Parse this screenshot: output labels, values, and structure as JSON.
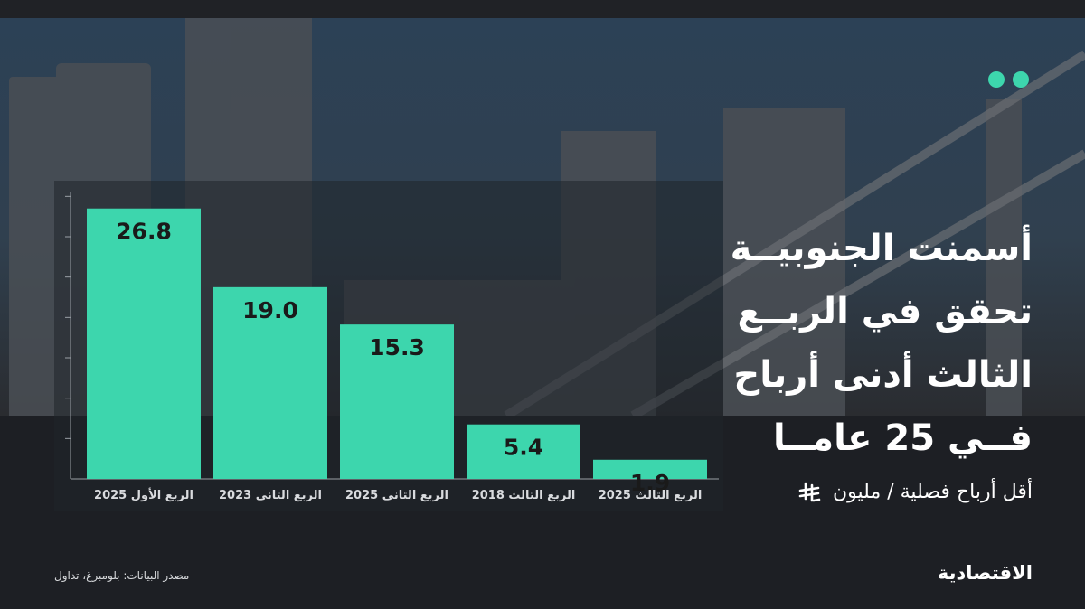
{
  "headline": {
    "lines": [
      "أسمنت الجنوبيــة",
      "تحقق في الربــع",
      "الثالث أدنى أرباح",
      "فــي 25 عامــا"
    ]
  },
  "subtitle": "أقل أرباح فصلية / مليون",
  "source": "مصدر البيانات: بلومبرغ، تداول",
  "brand": "الاقتصادية",
  "colors": {
    "bar": "#3dd6ad",
    "background": "#1d1f24",
    "text": "#ffffff",
    "dots": "#3dd6ad"
  },
  "icons": [
    "riyal-currency-icon",
    "logo-dots-icon"
  ],
  "chart_data": {
    "type": "bar",
    "categories": [
      "الربع الأول 2025",
      "الربع الثاني 2023",
      "الربع الثاني 2025",
      "الربع الثالث 2018",
      "الربع الثالث 2025"
    ],
    "values": [
      26.8,
      19.0,
      15.3,
      5.4,
      1.9
    ],
    "value_labels": [
      "26.8",
      "19.0",
      "15.3",
      "5.4",
      "1.9"
    ],
    "ylim": [
      0,
      30
    ],
    "grid": false
  }
}
